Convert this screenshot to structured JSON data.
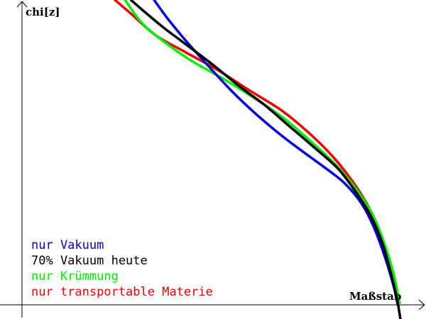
{
  "chart_data": {
    "type": "line",
    "title": "",
    "ylabel": "chi[z]",
    "xlabel": "Maßstab",
    "grid": false,
    "legend_position": "bottom-left",
    "series": [
      {
        "name": "nur Vakuum",
        "color": "#0000dd",
        "points": [
          [
            0.327,
            1.0
          ],
          [
            0.36,
            0.94
          ],
          [
            0.4,
            0.875
          ],
          [
            0.45,
            0.8
          ],
          [
            0.52,
            0.7
          ],
          [
            0.58,
            0.625
          ],
          [
            0.64,
            0.558
          ],
          [
            0.7,
            0.498
          ],
          [
            0.76,
            0.44
          ],
          [
            0.8,
            0.397
          ],
          [
            0.84,
            0.333
          ],
          [
            0.87,
            0.258
          ],
          [
            0.9,
            0.15
          ],
          [
            0.92,
            0.06
          ],
          [
            0.93,
            0.0
          ]
        ]
      },
      {
        "name": "70% Vakuum heute",
        "color": "#000000",
        "points": [
          [
            0.27,
            1.0
          ],
          [
            0.3,
            0.965
          ],
          [
            0.35,
            0.91
          ],
          [
            0.4,
            0.86
          ],
          [
            0.47,
            0.79
          ],
          [
            0.54,
            0.715
          ],
          [
            0.6,
            0.656
          ],
          [
            0.66,
            0.588
          ],
          [
            0.72,
            0.52
          ],
          [
            0.78,
            0.45
          ],
          [
            0.82,
            0.382
          ],
          [
            0.86,
            0.3
          ],
          [
            0.89,
            0.21
          ],
          [
            0.91,
            0.12
          ],
          [
            0.928,
            0.02
          ],
          [
            0.937,
            -0.05
          ]
        ]
      },
      {
        "name": "nur Krümmung",
        "color": "#00ee00",
        "points": [
          [
            0.255,
            1.0
          ],
          [
            0.3,
            0.92
          ],
          [
            0.36,
            0.855
          ],
          [
            0.42,
            0.8
          ],
          [
            0.5,
            0.74
          ],
          [
            0.58,
            0.674
          ],
          [
            0.65,
            0.61
          ],
          [
            0.72,
            0.53
          ],
          [
            0.78,
            0.455
          ],
          [
            0.83,
            0.375
          ],
          [
            0.87,
            0.29
          ],
          [
            0.9,
            0.19
          ],
          [
            0.92,
            0.1
          ],
          [
            0.935,
            0.0
          ]
        ]
      },
      {
        "name": "nur transportable Materie",
        "color": "#ee0000",
        "points": [
          [
            0.23,
            1.0
          ],
          [
            0.27,
            0.955
          ],
          [
            0.33,
            0.885
          ],
          [
            0.4,
            0.832
          ],
          [
            0.48,
            0.774
          ],
          [
            0.56,
            0.706
          ],
          [
            0.64,
            0.64
          ],
          [
            0.7,
            0.576
          ],
          [
            0.76,
            0.5
          ],
          [
            0.81,
            0.42
          ],
          [
            0.85,
            0.34
          ],
          [
            0.88,
            0.26
          ],
          [
            0.9,
            0.18
          ],
          [
            0.92,
            0.1
          ],
          [
            0.935,
            0.0
          ]
        ]
      }
    ],
    "xlim": [
      -0.05,
      1.0
    ],
    "ylim": [
      -0.05,
      1.0
    ]
  }
}
